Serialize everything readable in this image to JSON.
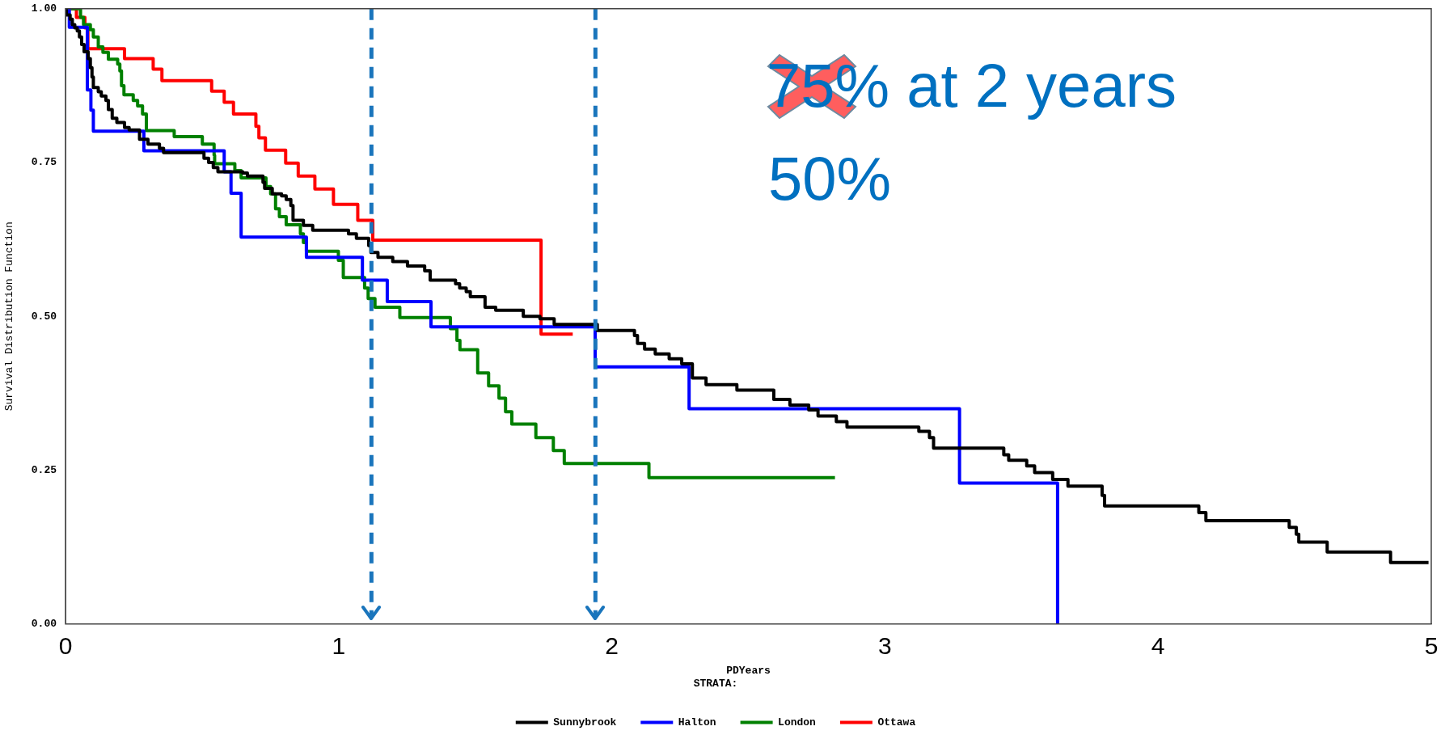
{
  "chart_data": {
    "type": "step",
    "xlabel": "PDYears",
    "ylabel": "Survival Distribution Function",
    "legend_title": "STRATA:",
    "legend": "bottom",
    "marker": "none",
    "line_style": "solid",
    "xlim": [
      0,
      5
    ],
    "xticks": [
      0,
      1,
      2,
      3,
      4,
      5
    ],
    "ylim": [
      0,
      1
    ],
    "yticks": [
      {
        "value": 0,
        "label": "0.00"
      },
      {
        "value": 0.25,
        "label": "0.25"
      },
      {
        "value": 0.5,
        "label": "0.50"
      },
      {
        "value": 0.75,
        "label": "0.75"
      },
      {
        "value": 1,
        "label": "1.00"
      }
    ],
    "series": [
      {
        "name": "Sunnybrook",
        "color": "#000000",
        "x": [
          0,
          0.003,
          0.017,
          0.025,
          0.034,
          0.043,
          0.051,
          0.059,
          0.068,
          0.083,
          0.091,
          0.097,
          0.102,
          0.12,
          0.131,
          0.148,
          0.157,
          0.171,
          0.188,
          0.216,
          0.233,
          0.271,
          0.302,
          0.344,
          0.359,
          0.507,
          0.524,
          0.541,
          0.558,
          0.649,
          0.666,
          0.723,
          0.729,
          0.757,
          0.791,
          0.808,
          0.825,
          0.833,
          0.871,
          0.905,
          1.036,
          1.065,
          1.11,
          1.118,
          1.144,
          1.198,
          1.252,
          1.315,
          1.335,
          1.428,
          1.443,
          1.467,
          1.482,
          1.536,
          1.575,
          1.676,
          1.737,
          1.789,
          1.947,
          2.083,
          2.094,
          2.12,
          2.159,
          2.21,
          2.256,
          2.295,
          2.345,
          2.458,
          2.593,
          2.652,
          2.721,
          2.755,
          2.822,
          2.861,
          3.124,
          3.163,
          3.178,
          3.435,
          3.453,
          3.519,
          3.548,
          3.614,
          3.67,
          3.795,
          3.804,
          4.149,
          4.175,
          4.48,
          4.506,
          4.515,
          4.619,
          4.851,
          4.99
        ],
        "values": [
          1,
          0.99,
          0.983,
          0.974,
          0.969,
          0.964,
          0.954,
          0.942,
          0.93,
          0.919,
          0.904,
          0.889,
          0.872,
          0.865,
          0.858,
          0.851,
          0.836,
          0.822,
          0.815,
          0.807,
          0.803,
          0.788,
          0.78,
          0.773,
          0.766,
          0.757,
          0.75,
          0.742,
          0.735,
          0.733,
          0.728,
          0.718,
          0.708,
          0.699,
          0.696,
          0.69,
          0.68,
          0.656,
          0.648,
          0.64,
          0.634,
          0.627,
          0.615,
          0.604,
          0.596,
          0.589,
          0.582,
          0.574,
          0.559,
          0.553,
          0.546,
          0.54,
          0.532,
          0.515,
          0.51,
          0.5,
          0.496,
          0.487,
          0.477,
          0.469,
          0.456,
          0.447,
          0.439,
          0.431,
          0.423,
          0.4,
          0.389,
          0.38,
          0.365,
          0.356,
          0.348,
          0.338,
          0.329,
          0.32,
          0.313,
          0.303,
          0.286,
          0.275,
          0.266,
          0.257,
          0.246,
          0.235,
          0.224,
          0.209,
          0.192,
          0.181,
          0.168,
          0.157,
          0.146,
          0.133,
          0.117,
          0.1,
          0.1
        ]
      },
      {
        "name": "Halton",
        "color": "#0000ff",
        "x": [
          0,
          0.014,
          0.08,
          0.093,
          0.102,
          0.287,
          0.581,
          0.606,
          0.643,
          0.882,
          1.087,
          1.178,
          1.338,
          1.939,
          2.283,
          3.273,
          3.632
        ],
        "values": [
          1,
          0.97,
          0.868,
          0.835,
          0.801,
          0.769,
          0.735,
          0.7,
          0.629,
          0.596,
          0.559,
          0.524,
          0.483,
          0.418,
          0.35,
          0.229,
          0
        ]
      },
      {
        "name": "London",
        "color": "#008000",
        "x": [
          0,
          0.055,
          0.066,
          0.091,
          0.102,
          0.12,
          0.137,
          0.157,
          0.191,
          0.199,
          0.205,
          0.214,
          0.248,
          0.264,
          0.282,
          0.296,
          0.398,
          0.501,
          0.544,
          0.546,
          0.62,
          0.643,
          0.734,
          0.751,
          0.769,
          0.783,
          0.808,
          0.86,
          0.871,
          0.882,
          0.999,
          1.017,
          1.095,
          1.108,
          1.133,
          1.224,
          1.409,
          1.433,
          1.444,
          1.509,
          1.549,
          1.587,
          1.611,
          1.634,
          1.722,
          1.786,
          1.826,
          2.136,
          2.817
        ],
        "values": [
          1,
          0.986,
          0.974,
          0.966,
          0.954,
          0.938,
          0.929,
          0.918,
          0.91,
          0.899,
          0.875,
          0.86,
          0.851,
          0.842,
          0.829,
          0.802,
          0.792,
          0.78,
          0.762,
          0.748,
          0.737,
          0.725,
          0.711,
          0.699,
          0.675,
          0.662,
          0.649,
          0.634,
          0.62,
          0.606,
          0.591,
          0.563,
          0.546,
          0.529,
          0.515,
          0.498,
          0.48,
          0.461,
          0.446,
          0.408,
          0.387,
          0.367,
          0.345,
          0.325,
          0.303,
          0.282,
          0.261,
          0.238,
          0.238
        ]
      },
      {
        "name": "Ottawa",
        "color": "#ff0000",
        "x": [
          0,
          0.04,
          0.071,
          0.082,
          0.216,
          0.321,
          0.353,
          0.535,
          0.581,
          0.615,
          0.697,
          0.708,
          0.732,
          0.806,
          0.852,
          0.913,
          0.981,
          1.07,
          1.125,
          1.741,
          1.857
        ],
        "values": [
          1,
          0.986,
          0.969,
          0.935,
          0.919,
          0.902,
          0.883,
          0.866,
          0.848,
          0.829,
          0.809,
          0.79,
          0.77,
          0.749,
          0.728,
          0.707,
          0.682,
          0.656,
          0.624,
          0.471,
          0.471
        ]
      }
    ],
    "ref_lines": [
      {
        "axis": "x",
        "value": 1.12,
        "color": "#1a75bc",
        "line_style": "dashed"
      },
      {
        "axis": "x",
        "value": 1.94,
        "color": "#1a75bc",
        "line_style": "dashed"
      }
    ],
    "annotations": [
      "75% at 2 years",
      "50%"
    ]
  }
}
